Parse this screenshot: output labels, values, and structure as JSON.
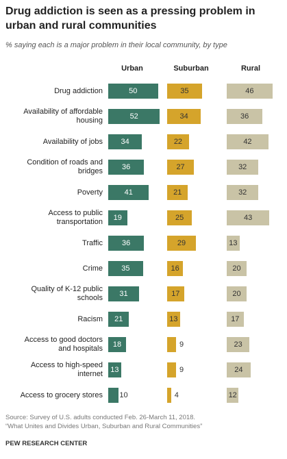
{
  "chart_data": {
    "type": "bar",
    "title": "Drug addiction is seen as a pressing problem in urban and rural communities",
    "subtitle": "% saying each is a major problem in their local community, by type",
    "categories": [
      "Drug addiction",
      "Availability of affordable housing",
      "Availability of jobs",
      "Condition of roads and bridges",
      "Poverty",
      "Access to public transportation",
      "Traffic",
      "Crime",
      "Quality of K-12 public schools",
      "Racism",
      "Access to good doctors and hospitals",
      "Access to high-speed internet",
      "Access to grocery stores"
    ],
    "series": [
      {
        "name": "Urban",
        "color": "#3b7866",
        "label_color": "#ffffff",
        "values": [
          50,
          52,
          34,
          36,
          41,
          19,
          36,
          35,
          31,
          21,
          18,
          13,
          10
        ]
      },
      {
        "name": "Suburban",
        "color": "#d5a42b",
        "label_color": "#333333",
        "values": [
          35,
          34,
          22,
          27,
          21,
          25,
          29,
          16,
          17,
          13,
          9,
          9,
          4
        ]
      },
      {
        "name": "Rural",
        "color": "#c9c3a6",
        "label_color": "#333333",
        "values": [
          46,
          36,
          42,
          32,
          32,
          43,
          13,
          20,
          20,
          17,
          23,
          24,
          12
        ]
      }
    ],
    "source": [
      "Source: Survey of U.S. adults conducted Feb. 26-March 11, 2018.",
      "“What Unites and Divides Urban, Suburban and Rural Communities”"
    ],
    "credit": "PEW RESEARCH CENTER"
  }
}
